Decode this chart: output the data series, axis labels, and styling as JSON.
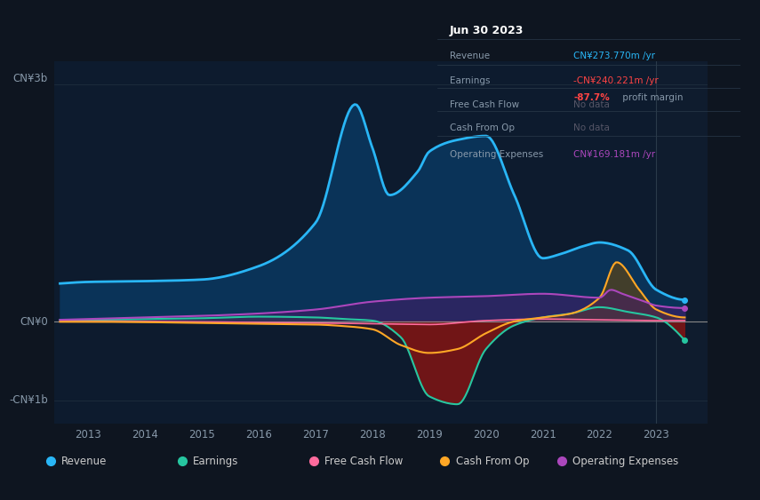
{
  "bg_color": "#0e1520",
  "plot_bg_color": "#0d1b2e",
  "grid_color": "#1e2d3d",
  "y_label_3b": "CN¥3b",
  "y_label_0": "CN¥0",
  "y_label_m1b": "-CN¥1b",
  "ylim": [
    -1300,
    3300
  ],
  "revenue_color": "#29b6f6",
  "earnings_color": "#26c6a0",
  "fcf_color": "#ff6b9d",
  "cash_op_color": "#ffa726",
  "opex_color": "#ab47bc",
  "revenue_fill": "#0a3358",
  "earnings_fill_pos": "#1a4a3a",
  "earnings_fill_neg": "#7b1515",
  "cash_op_fill_pos": "#7a4a00",
  "opex_fill": "#4a1a6a",
  "legend_items": [
    "Revenue",
    "Earnings",
    "Free Cash Flow",
    "Cash From Op",
    "Operating Expenses"
  ],
  "legend_colors": [
    "#29b6f6",
    "#26c6a0",
    "#ff6b9d",
    "#ffa726",
    "#ab47bc"
  ]
}
